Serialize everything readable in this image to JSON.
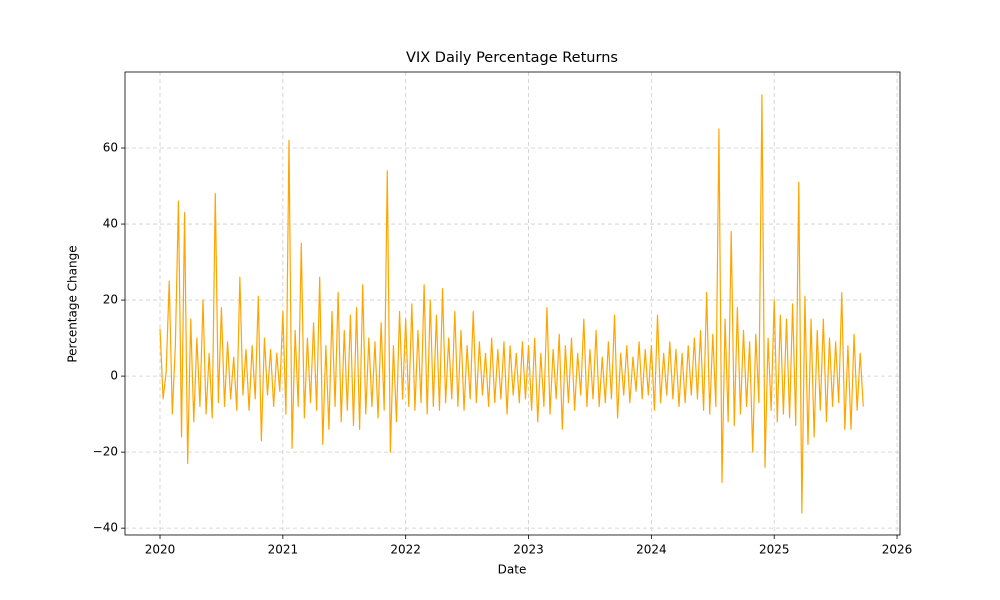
{
  "chart_data": {
    "type": "line",
    "title": "VIX Daily Percentage Returns",
    "x_label": "Date",
    "y_label": "Percentage Change",
    "x": [
      2020,
      2020.025,
      2020.05,
      2020.075,
      2020.1,
      2020.125,
      2020.15,
      2020.175,
      2020.2,
      2020.225,
      2020.25,
      2020.275,
      2020.3,
      2020.325,
      2020.35,
      2020.375,
      2020.4,
      2020.425,
      2020.45,
      2020.475,
      2020.5,
      2020.525,
      2020.55,
      2020.575,
      2020.6,
      2020.625,
      2020.65,
      2020.675,
      2020.7,
      2020.725,
      2020.75,
      2020.775,
      2020.8,
      2020.825,
      2020.85,
      2020.875,
      2020.9,
      2020.925,
      2020.95,
      2020.975,
      2021,
      2021.025,
      2021.05,
      2021.075,
      2021.1,
      2021.125,
      2021.15,
      2021.175,
      2021.2,
      2021.225,
      2021.25,
      2021.275,
      2021.3,
      2021.325,
      2021.35,
      2021.375,
      2021.4,
      2021.425,
      2021.45,
      2021.475,
      2021.5,
      2021.525,
      2021.55,
      2021.575,
      2021.6,
      2021.625,
      2021.65,
      2021.675,
      2021.7,
      2021.725,
      2021.75,
      2021.775,
      2021.8,
      2021.825,
      2021.85,
      2021.875,
      2021.9,
      2021.925,
      2021.95,
      2021.975,
      2022,
      2022.025,
      2022.05,
      2022.075,
      2022.1,
      2022.125,
      2022.15,
      2022.175,
      2022.2,
      2022.225,
      2022.25,
      2022.275,
      2022.3,
      2022.325,
      2022.35,
      2022.375,
      2022.4,
      2022.425,
      2022.45,
      2022.475,
      2022.5,
      2022.525,
      2022.55,
      2022.575,
      2022.6,
      2022.625,
      2022.65,
      2022.675,
      2022.7,
      2022.725,
      2022.75,
      2022.775,
      2022.8,
      2022.825,
      2022.85,
      2022.875,
      2022.9,
      2022.925,
      2022.95,
      2022.975,
      2023,
      2023.025,
      2023.05,
      2023.075,
      2023.1,
      2023.125,
      2023.15,
      2023.175,
      2023.2,
      2023.225,
      2023.25,
      2023.275,
      2023.3,
      2023.325,
      2023.35,
      2023.375,
      2023.4,
      2023.425,
      2023.45,
      2023.475,
      2023.5,
      2023.525,
      2023.55,
      2023.575,
      2023.6,
      2023.625,
      2023.65,
      2023.675,
      2023.7,
      2023.725,
      2023.75,
      2023.775,
      2023.8,
      2023.825,
      2023.85,
      2023.875,
      2023.9,
      2023.925,
      2023.95,
      2023.975,
      2024,
      2024.025,
      2024.05,
      2024.075,
      2024.1,
      2024.125,
      2024.15,
      2024.175,
      2024.2,
      2024.225,
      2024.25,
      2024.275,
      2024.3,
      2024.325,
      2024.35,
      2024.375,
      2024.4,
      2024.425,
      2024.45,
      2024.475,
      2024.5,
      2024.525,
      2024.55,
      2024.575,
      2024.6,
      2024.625,
      2024.65,
      2024.675,
      2024.7,
      2024.725,
      2024.75,
      2024.775,
      2024.8,
      2024.825,
      2024.85,
      2024.875,
      2024.9,
      2024.925,
      2024.95,
      2024.975,
      2025,
      2025.025,
      2025.05,
      2025.075,
      2025.1,
      2025.125,
      2025.15,
      2025.175,
      2025.2,
      2025.225,
      2025.25,
      2025.275,
      2025.3,
      2025.325,
      2025.35,
      2025.375,
      2025.4,
      2025.425,
      2025.45,
      2025.475,
      2025.5,
      2025.525,
      2025.55,
      2025.575,
      2025.6,
      2025.625,
      2025.65,
      2025.675,
      2025.7,
      2025.725
    ],
    "values": [
      12.5,
      -6,
      1,
      25,
      -10,
      8,
      46,
      -16,
      43,
      -23,
      15,
      -12,
      10,
      -8,
      20,
      -10,
      6,
      -11,
      48,
      -7,
      18,
      -8,
      9,
      -6,
      5,
      -9,
      26,
      -5,
      7,
      -9,
      8,
      -6,
      21,
      -17,
      10,
      -5,
      7,
      -8,
      6,
      -4,
      17,
      -10,
      62,
      -19,
      12,
      -8,
      35,
      -11,
      10,
      -7,
      14,
      -9,
      26,
      -18,
      8,
      -14,
      17,
      -8,
      22,
      -12,
      12,
      -9,
      16,
      -13,
      18,
      -14,
      24,
      -10,
      10,
      -8,
      9,
      -11,
      14,
      -9,
      54,
      -20,
      8,
      -12,
      17,
      -6,
      15,
      -8,
      19,
      -9,
      12,
      -7,
      24,
      -10,
      20,
      -8,
      16,
      -9,
      23,
      -7,
      10,
      -6,
      17,
      -8,
      12,
      -9,
      8,
      -6,
      17,
      -7,
      9,
      -5,
      6,
      -8,
      10,
      -7,
      7,
      -6,
      9,
      -10,
      8,
      -5,
      6,
      -7,
      9,
      -6,
      8,
      -9,
      10,
      -12,
      6,
      -8,
      18,
      -10,
      7,
      -6,
      11,
      -14,
      8,
      -7,
      10,
      -9,
      6,
      -5,
      15,
      -8,
      7,
      -6,
      12,
      -8,
      5,
      -7,
      9,
      -6,
      16,
      -11,
      6,
      -5,
      8,
      -7,
      5,
      -4,
      9,
      -6,
      7,
      -5,
      8,
      -9,
      16,
      -7,
      6,
      -5,
      9,
      -6,
      7,
      -8,
      6,
      -7,
      8,
      -5,
      10,
      -6,
      12,
      -9,
      22,
      -10,
      11,
      -8,
      65,
      -28,
      15,
      -12,
      38,
      -13,
      18,
      -10,
      12,
      -8,
      9,
      -20,
      11,
      -7,
      74,
      -24,
      10,
      -9,
      20,
      -12,
      16,
      -10,
      15,
      -11,
      19,
      -13,
      51,
      -36,
      21,
      -18,
      15,
      -16,
      12,
      -9,
      15,
      -12,
      10,
      -8,
      9,
      -7,
      22,
      -14,
      8,
      -14,
      11,
      -9,
      6,
      -8
    ],
    "color": "#ffa500",
    "xlim": [
      2019.715,
      2026.024
    ],
    "ylim": [
      -41.8,
      80
    ],
    "xticks": [
      2020,
      2021,
      2022,
      2023,
      2024,
      2025,
      2026
    ],
    "yticks": [
      -40,
      -20,
      0,
      20,
      40,
      60
    ],
    "grid": true
  }
}
